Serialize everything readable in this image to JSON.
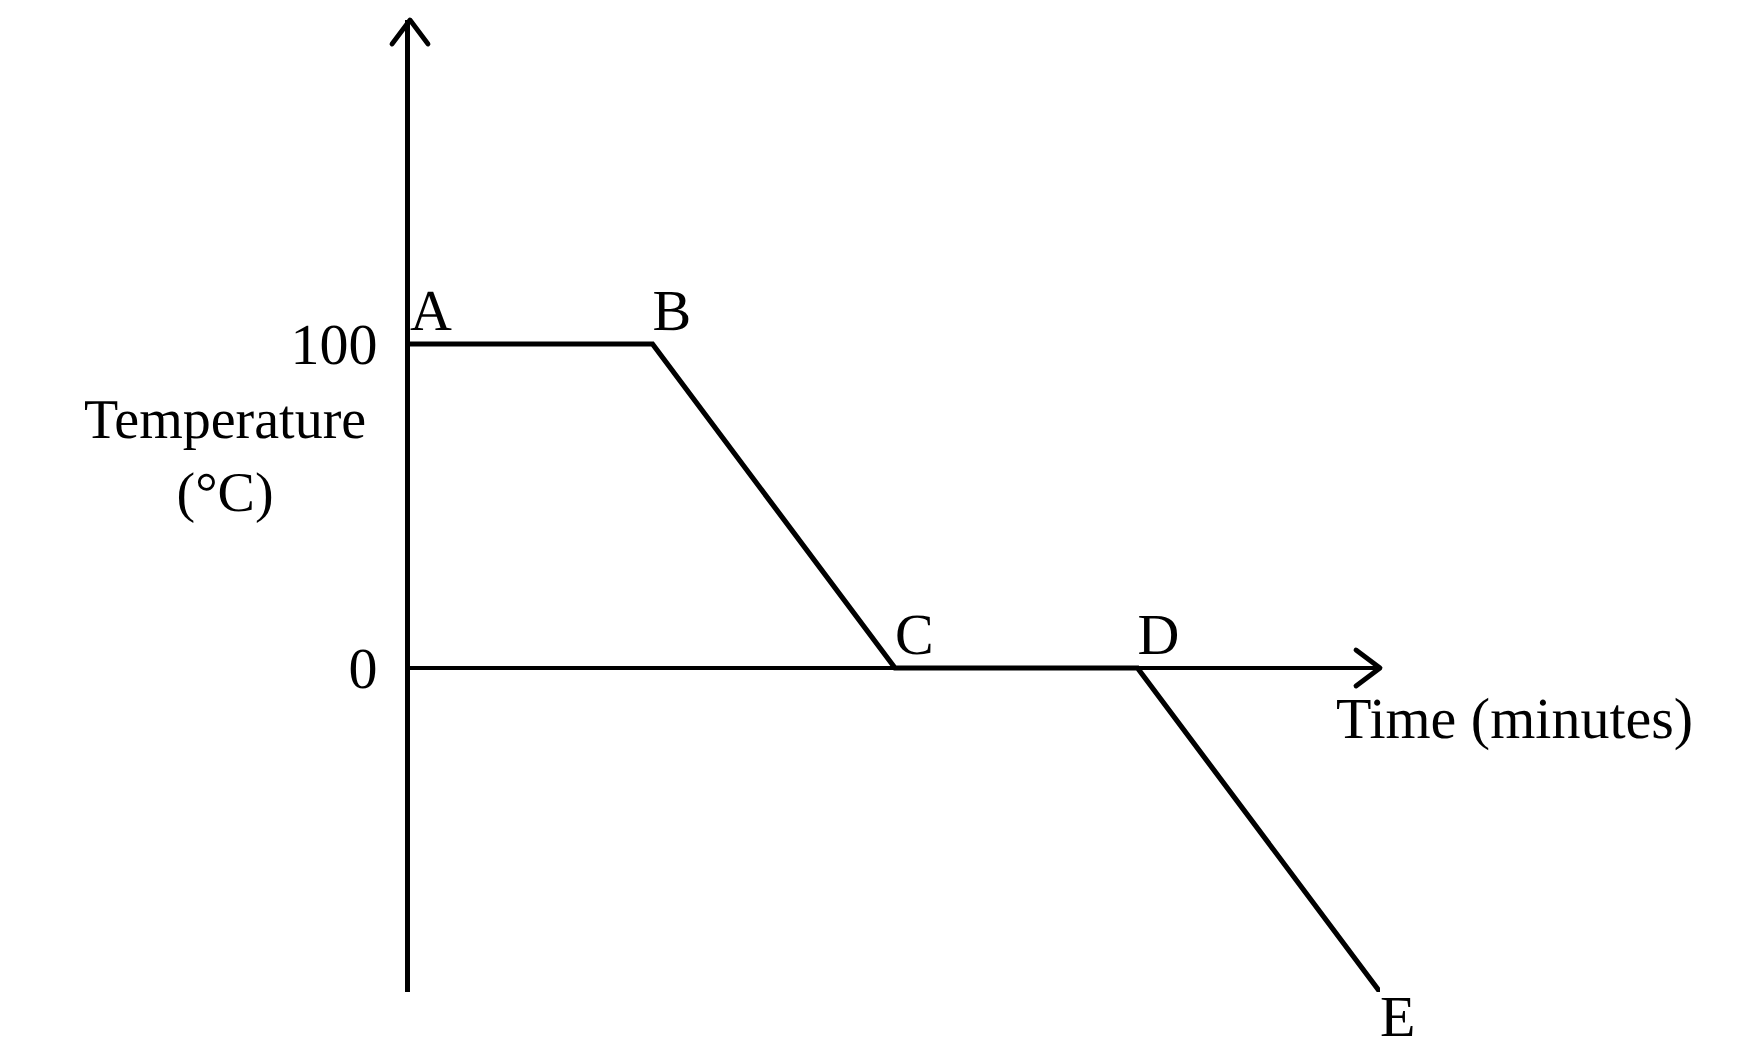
{
  "chart_data": {
    "type": "line",
    "xlabel": "Time (minutes)",
    "ylabel": "Temperature (°C)",
    "categories": [
      null,
      null,
      null,
      null,
      null
    ],
    "values": [
      100,
      100,
      0,
      0,
      -100
    ],
    "value_labels": [
      "A",
      "B",
      "C",
      "D",
      "E"
    ],
    "color": "#000000",
    "line_style": "solid",
    "ylim": [
      -100,
      200
    ],
    "yticks": [
      0,
      100
    ],
    "tick_labels": "y"
  }
}
